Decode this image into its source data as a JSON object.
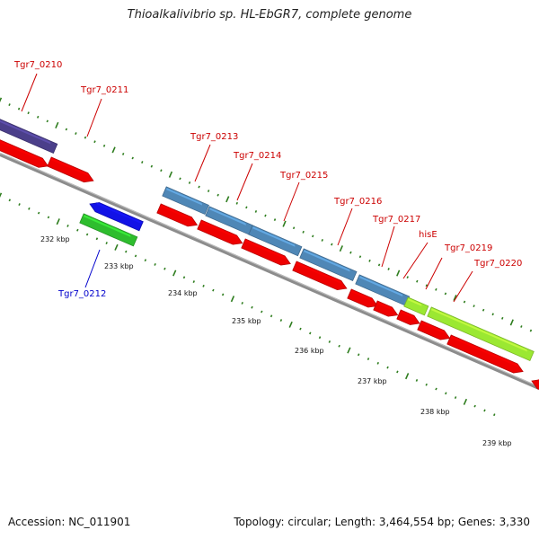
{
  "title": "Thioalkalivibrio sp. HL-EbGR7, complete genome",
  "accession": "Accession: NC_011901",
  "summary": "Topology: circular; Length: 3,464,554 bp; Genes: 3,330",
  "colors": {
    "backbone": "#8c8c8c",
    "cds": "#ee0000",
    "steelblue": "#4f87b6",
    "purple": "#4b3f8a",
    "blue": "#1212e6",
    "green": "#2ebd2e",
    "lime": "#9be832",
    "tick": "#2e7d1e",
    "label_red": "#cc0000",
    "label_blue": "#0000cc"
  },
  "scale_labels": [
    "232 kbp",
    "233 kbp",
    "234 kbp",
    "235 kbp",
    "236 kbp",
    "237 kbp",
    "238 kbp",
    "239 kbp"
  ],
  "gene_labels": [
    {
      "name": "Tgr7_0210",
      "color": "label_red"
    },
    {
      "name": "Tgr7_0211",
      "color": "label_red"
    },
    {
      "name": "Tgr7_0212",
      "color": "label_blue"
    },
    {
      "name": "Tgr7_0213",
      "color": "label_red"
    },
    {
      "name": "Tgr7_0214",
      "color": "label_red"
    },
    {
      "name": "Tgr7_0215",
      "color": "label_red"
    },
    {
      "name": "Tgr7_0216",
      "color": "label_red"
    },
    {
      "name": "Tgr7_0217",
      "color": "label_red"
    },
    {
      "name": "hisE",
      "color": "label_red"
    },
    {
      "name": "Tgr7_0219",
      "color": "label_red"
    },
    {
      "name": "Tgr7_0220",
      "color": "label_red"
    }
  ]
}
